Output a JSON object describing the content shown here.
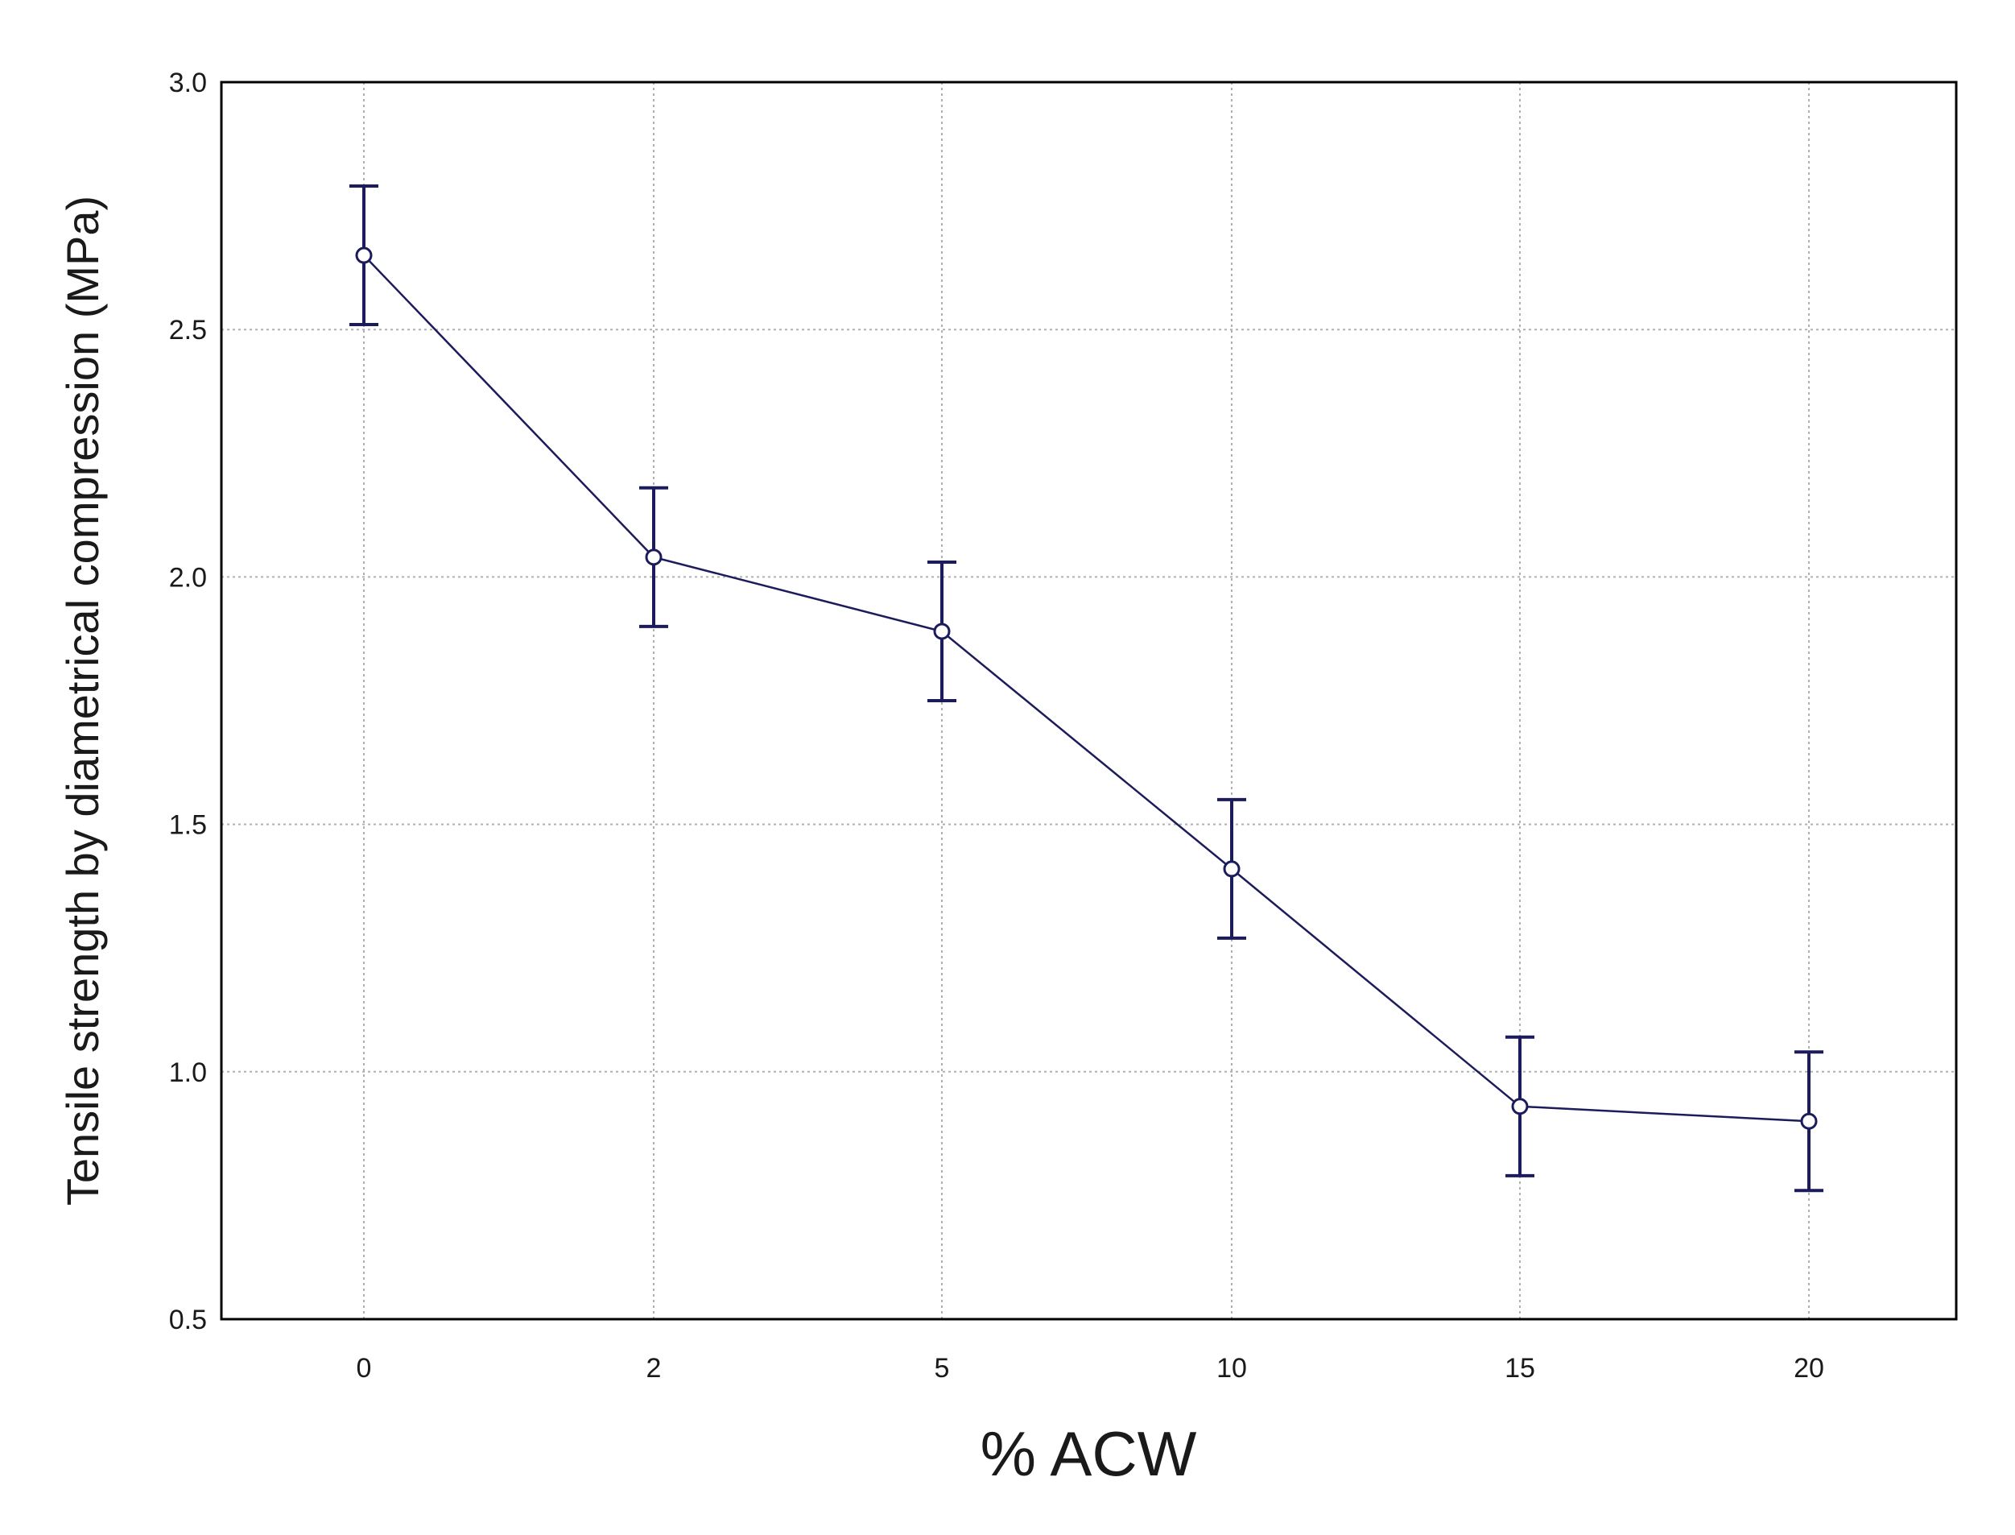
{
  "chart_data": {
    "type": "line",
    "title": "",
    "xlabel": "% ACW",
    "ylabel": "Tensile strength by diametrical compression (MPa)",
    "x_categories": [
      "0",
      "2",
      "5",
      "10",
      "15",
      "20"
    ],
    "ylim": [
      0.5,
      3.0
    ],
    "y_ticks": [
      0.5,
      1.0,
      1.5,
      2.0,
      2.5,
      3.0
    ],
    "y_tick_labels": [
      "0.5",
      "1.0",
      "1.5",
      "2.0",
      "2.5",
      "3.0"
    ],
    "grid": true,
    "legend": "none",
    "series": [
      {
        "values": [
          2.65,
          2.04,
          1.89,
          1.41,
          0.93,
          0.9
        ],
        "error_low": [
          2.51,
          1.9,
          1.75,
          1.27,
          0.79,
          0.76
        ],
        "error_high": [
          2.79,
          2.18,
          2.03,
          1.55,
          1.07,
          1.04
        ]
      }
    ],
    "colors": {
      "line": "#1c1c5c",
      "error_bar": "#1c1c5c",
      "marker_fill": "#ffffff",
      "grid": "#b0b0b0",
      "frame": "#000000"
    }
  }
}
